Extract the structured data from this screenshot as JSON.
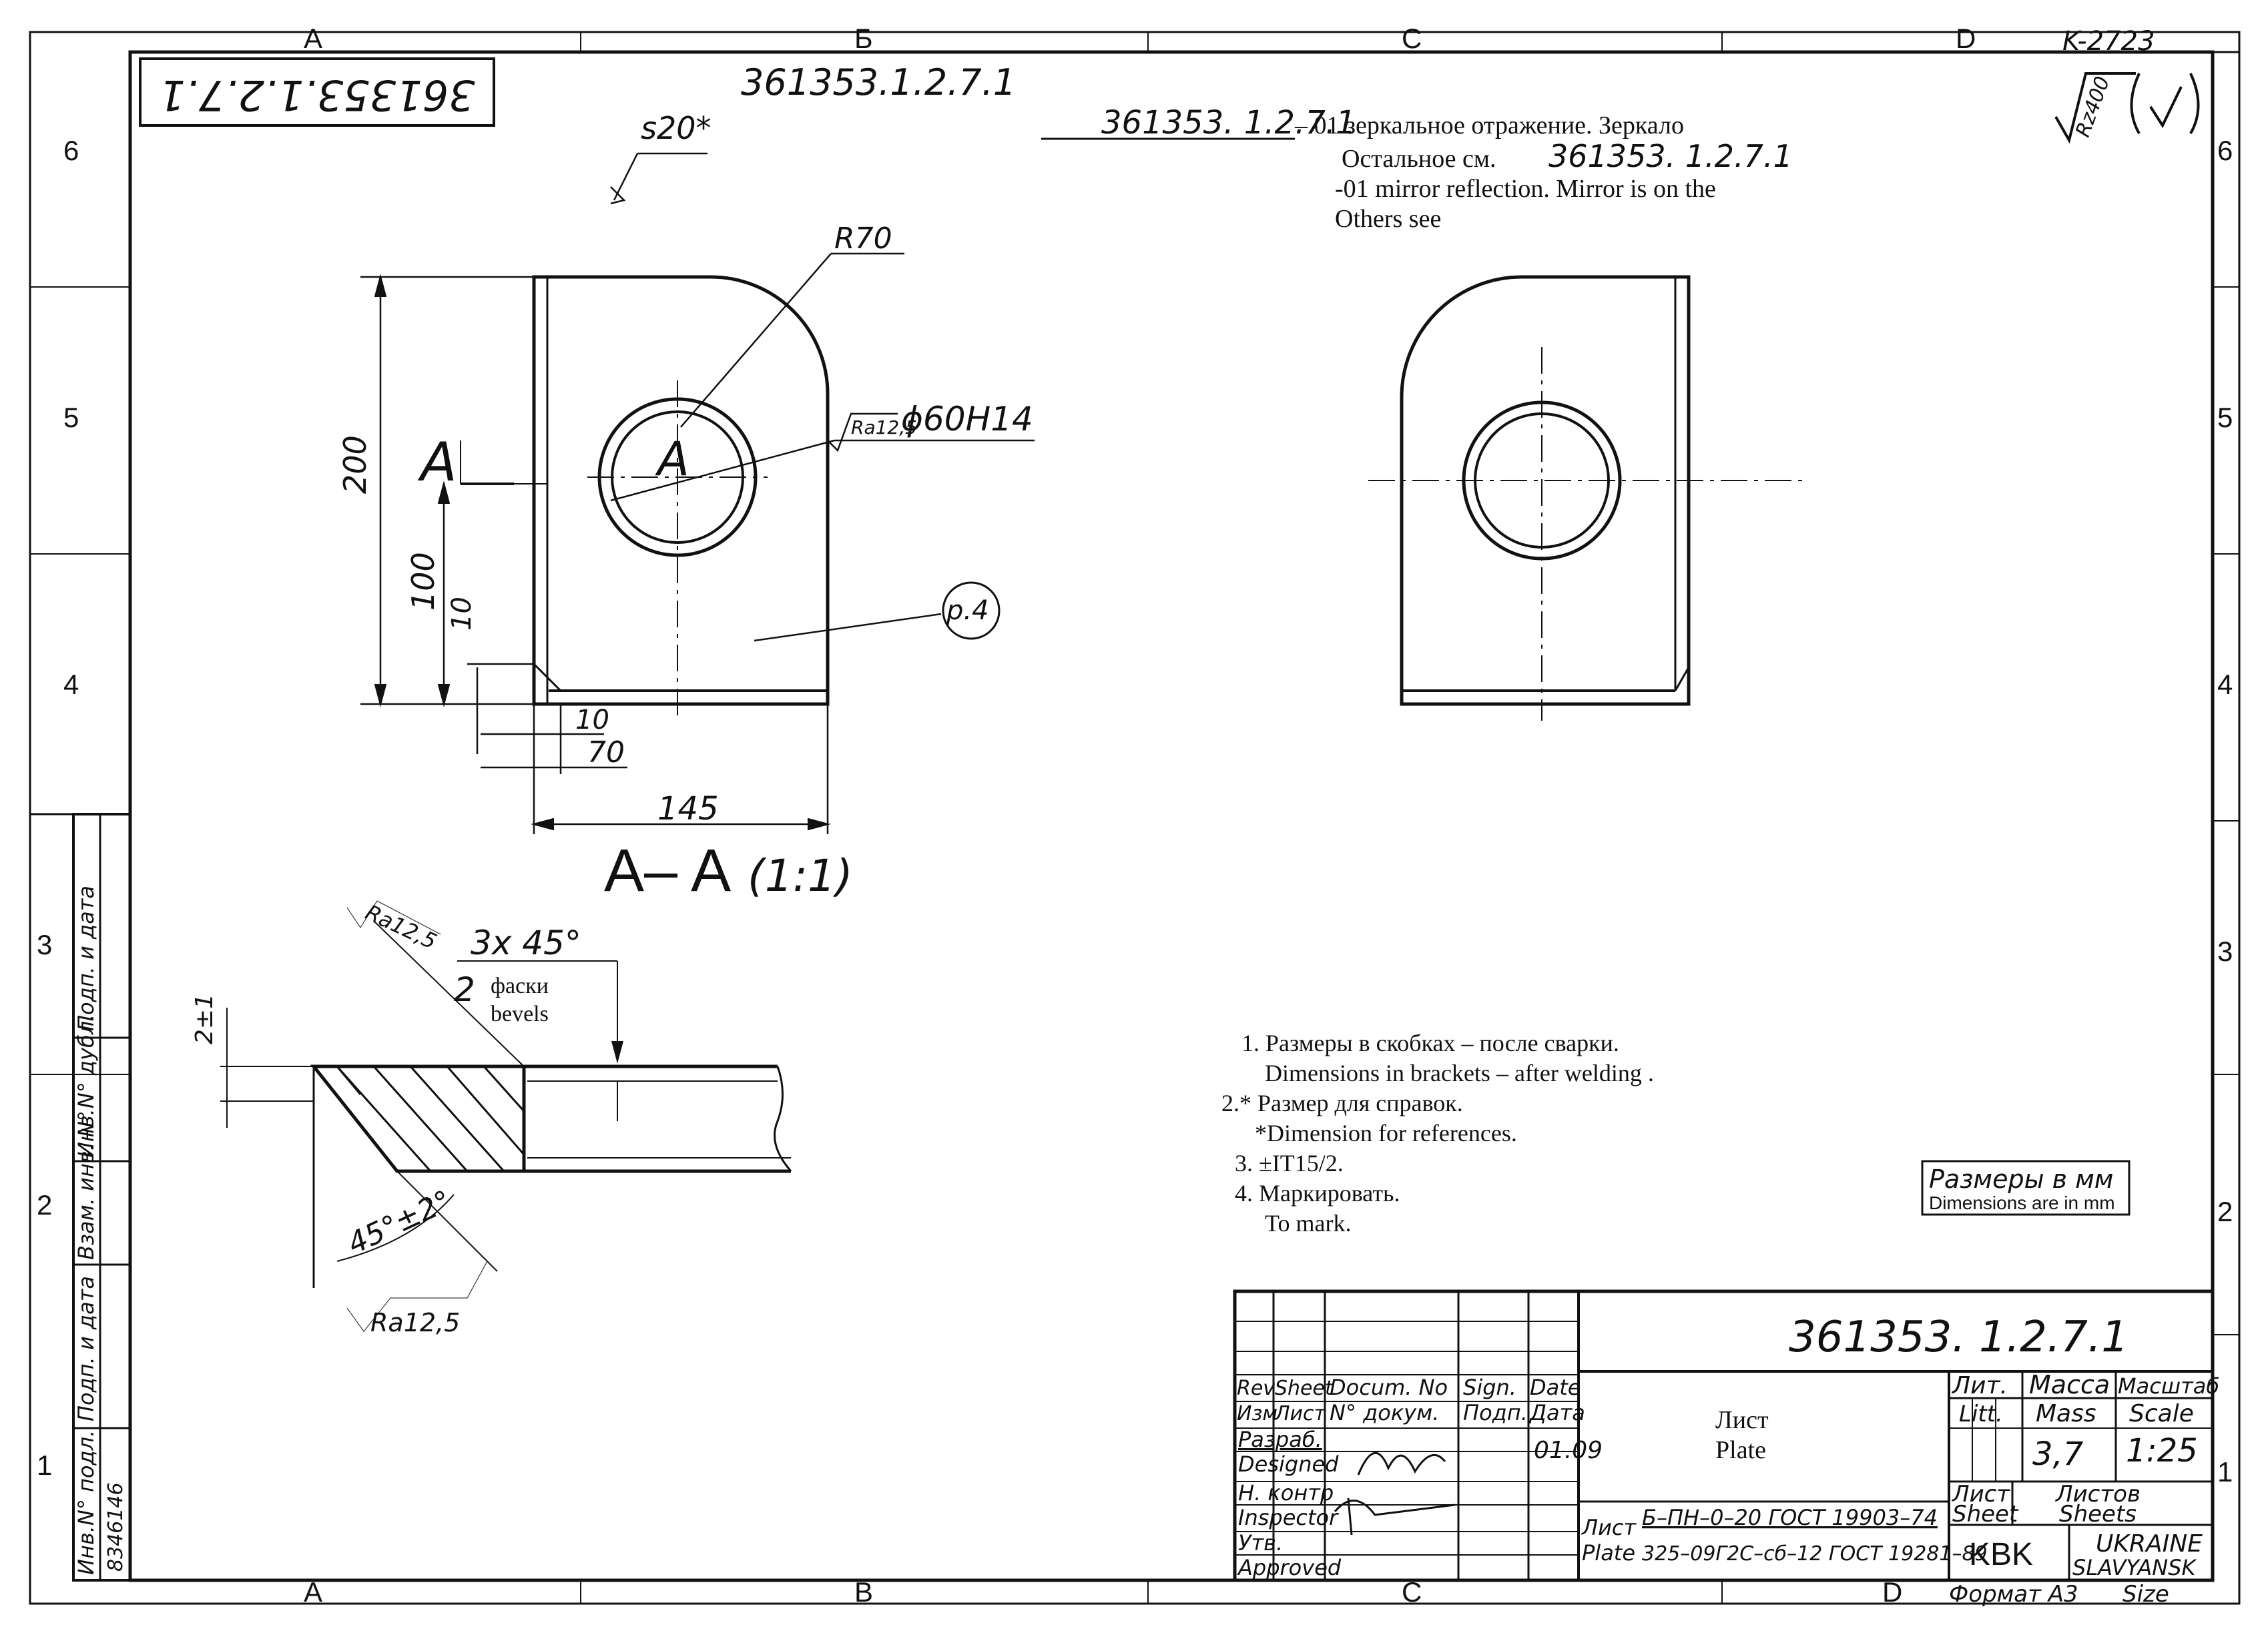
{
  "zones": {
    "top": [
      "A",
      "Б",
      "C",
      "D"
    ],
    "bottom": [
      "A",
      "B",
      "C",
      "D"
    ],
    "rows": [
      "6",
      "5",
      "4",
      "3",
      "2",
      "1"
    ]
  },
  "corner_code": "K-2723",
  "rotated_number": "361353.1.2.7.1",
  "part_number_top": "361353.1.2.7.1",
  "mirror_note": {
    "ref": "361353. 1.2.7.1",
    "line1": "– 01 зеркальное отражение. Зеркало",
    "line2_prefix": "Остальное см.",
    "line2_ref": "361353. 1.2.7.1",
    "line3": "-01  mirror reflection.  Mirror  is  on the",
    "line4": "Others  see"
  },
  "roughness_general": "Rz400",
  "dims": {
    "s20": "s20*",
    "r70": "R70",
    "rough_hole": "Ra12,5",
    "hole": "ϕ60H14",
    "section_mark": "A",
    "d200": "200",
    "d100": "100",
    "d10v": "10",
    "d10h": "10",
    "d70": "70",
    "d145": "145",
    "pos": "p.4",
    "section_title": "A– A",
    "section_scale": "(1:1)"
  },
  "detail": {
    "rough1": "Ra12,5",
    "chamfer": "3x 45°",
    "count": "2",
    "ru": "фаски",
    "en": "bevels",
    "tol": "2±1",
    "angle": "45°±2°",
    "rough2": "Ra12,5"
  },
  "notes": [
    "1. Размеры в скобках – после сварки.",
    "Dimensions in brackets – after welding .",
    "2.* Размер      для справок.",
    "*Dimension   for references.",
    "3. ±IT15/2.",
    "4. Маркировать.",
    "To mark."
  ],
  "units": {
    "ru": "Размеры в мм",
    "en": "Dimensions are in mm"
  },
  "title_block": {
    "designation": "361353. 1.2.7.1",
    "headers_en": [
      "Rev",
      "Sheet",
      "Docum. No",
      "Sign.",
      "Date"
    ],
    "headers_ru": [
      "Изм",
      "Лист",
      "N° докум.",
      "Подп.",
      "Дата"
    ],
    "roles": [
      {
        "ru": "Разраб.",
        "en": "Designed"
      },
      {
        "ru": "Н. контр",
        "en": "Inspector"
      },
      {
        "ru": "Утв.",
        "en": "Approved"
      }
    ],
    "date": "01.09",
    "name_ru": "Лист",
    "name_en": "Plate",
    "material_label_ru": "Лист",
    "material_label_en": "Plate",
    "material_1": "Б–ПН–0–20 ГОСТ 19903–74",
    "material_2": "325–09Г2С–сб–12  ГОСТ 19281–89",
    "lit_ru": "Лит.",
    "lit_en": "Litt.",
    "mass_ru": "Масса",
    "mass_en": "Mass",
    "scale_ru": "Масштаб",
    "scale_en": "Scale",
    "mass": "3,7",
    "scale": "1:25",
    "sheet_ru": "Лист",
    "sheet_en": "Sheet",
    "sheets_ru": "Листов",
    "sheets_en": "Sheets",
    "org": "KBK",
    "country": "UKRAINE",
    "city": "SLAVYANSK",
    "format": "Формат А3",
    "size": "Size"
  },
  "side_strip": {
    "labels": [
      "Инв.N° подл.",
      "Подп. и дата",
      "Взам. инв. N°",
      "Инв.N° дубл.",
      "Подп. и дата"
    ],
    "value": "8346146"
  }
}
